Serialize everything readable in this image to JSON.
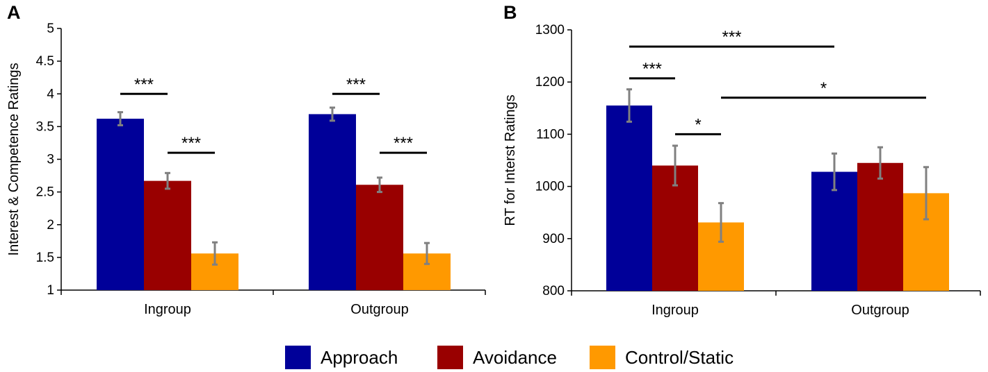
{
  "colors": {
    "approach": "#000099",
    "avoidance": "#990000",
    "control": "#ff9900",
    "error": "#808080",
    "axis": "#000000"
  },
  "legend": {
    "items": [
      {
        "key": "approach",
        "label": "Approach"
      },
      {
        "key": "avoidance",
        "label": "Avoidance"
      },
      {
        "key": "control",
        "label": "Control/Static"
      }
    ]
  },
  "chart_data": [
    {
      "panel": "A",
      "type": "bar",
      "ylabel": "Interest & Competence Ratings",
      "ylim": [
        1,
        5
      ],
      "yticks": [
        "1",
        "1.5",
        "2",
        "2.5",
        "3",
        "3.5",
        "4",
        "4.5",
        "5"
      ],
      "categories": [
        "Ingroup",
        "Outgroup"
      ],
      "series": [
        {
          "name": "Approach",
          "key": "approach",
          "values": [
            3.62,
            3.69
          ],
          "errors": [
            0.1,
            0.1
          ]
        },
        {
          "name": "Avoidance",
          "key": "avoidance",
          "values": [
            2.67,
            2.61
          ],
          "errors": [
            0.12,
            0.11
          ]
        },
        {
          "name": "Control/Static",
          "key": "control",
          "values": [
            1.56,
            1.56
          ],
          "errors": [
            0.17,
            0.16
          ]
        }
      ],
      "significance": [
        {
          "label": "***",
          "cat": 0,
          "from": 0,
          "to": 1,
          "y": 4.0
        },
        {
          "label": "***",
          "cat": 0,
          "from": 1,
          "to": 2,
          "y": 3.1
        },
        {
          "label": "***",
          "cat": 1,
          "from": 0,
          "to": 1,
          "y": 4.0
        },
        {
          "label": "***",
          "cat": 1,
          "from": 1,
          "to": 2,
          "y": 3.1
        }
      ]
    },
    {
      "panel": "B",
      "type": "bar",
      "ylabel": "RT for Interst Ratings",
      "ylim": [
        800,
        1300
      ],
      "yticks": [
        "800",
        "900",
        "1000",
        "1100",
        "1200",
        "1300"
      ],
      "categories": [
        "Ingroup",
        "Outgroup"
      ],
      "series": [
        {
          "name": "Approach",
          "key": "approach",
          "values": [
            1155,
            1028
          ],
          "errors": [
            31,
            35
          ]
        },
        {
          "name": "Avoidance",
          "key": "avoidance",
          "values": [
            1040,
            1045
          ],
          "errors": [
            38,
            30
          ]
        },
        {
          "name": "Control/Static",
          "key": "control",
          "values": [
            931,
            987
          ],
          "errors": [
            37,
            50
          ]
        }
      ],
      "significance": [
        {
          "label": "***",
          "x1": [
            0,
            0
          ],
          "x2": [
            1,
            0
          ],
          "y": 1268
        },
        {
          "label": "***",
          "x1": [
            0,
            0
          ],
          "x2": [
            0,
            1
          ],
          "y": 1207
        },
        {
          "label": "*",
          "x1": [
            0,
            1
          ],
          "x2": [
            0,
            2
          ],
          "y": 1100
        },
        {
          "label": "*",
          "x1": [
            0,
            2
          ],
          "x2": [
            1,
            2
          ],
          "y": 1170
        }
      ]
    }
  ]
}
